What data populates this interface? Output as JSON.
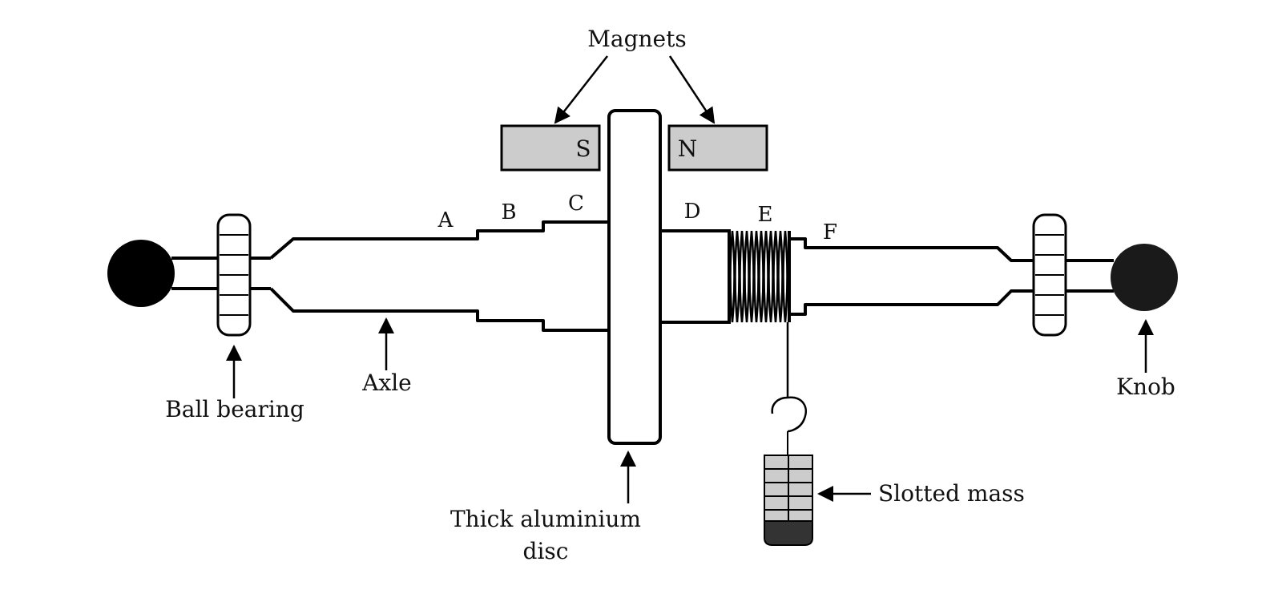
{
  "labels": {
    "magnets": "Magnets",
    "south": "S",
    "north": "N",
    "a": "A",
    "b": "B",
    "c": "C",
    "d": "D",
    "e": "E",
    "f": "F",
    "ball_bearing": "Ball bearing",
    "axle": "Axle",
    "disc_line1": "Thick aluminium",
    "disc_line2": "disc",
    "slotted_mass": "Slotted mass",
    "knob": "Knob"
  },
  "colors": {
    "magnet_fill": "#cccccc",
    "knob_left": "#000000",
    "knob_right": "#1a1a1a",
    "mass_fill": "#cccccc",
    "mass_base": "#333333"
  }
}
